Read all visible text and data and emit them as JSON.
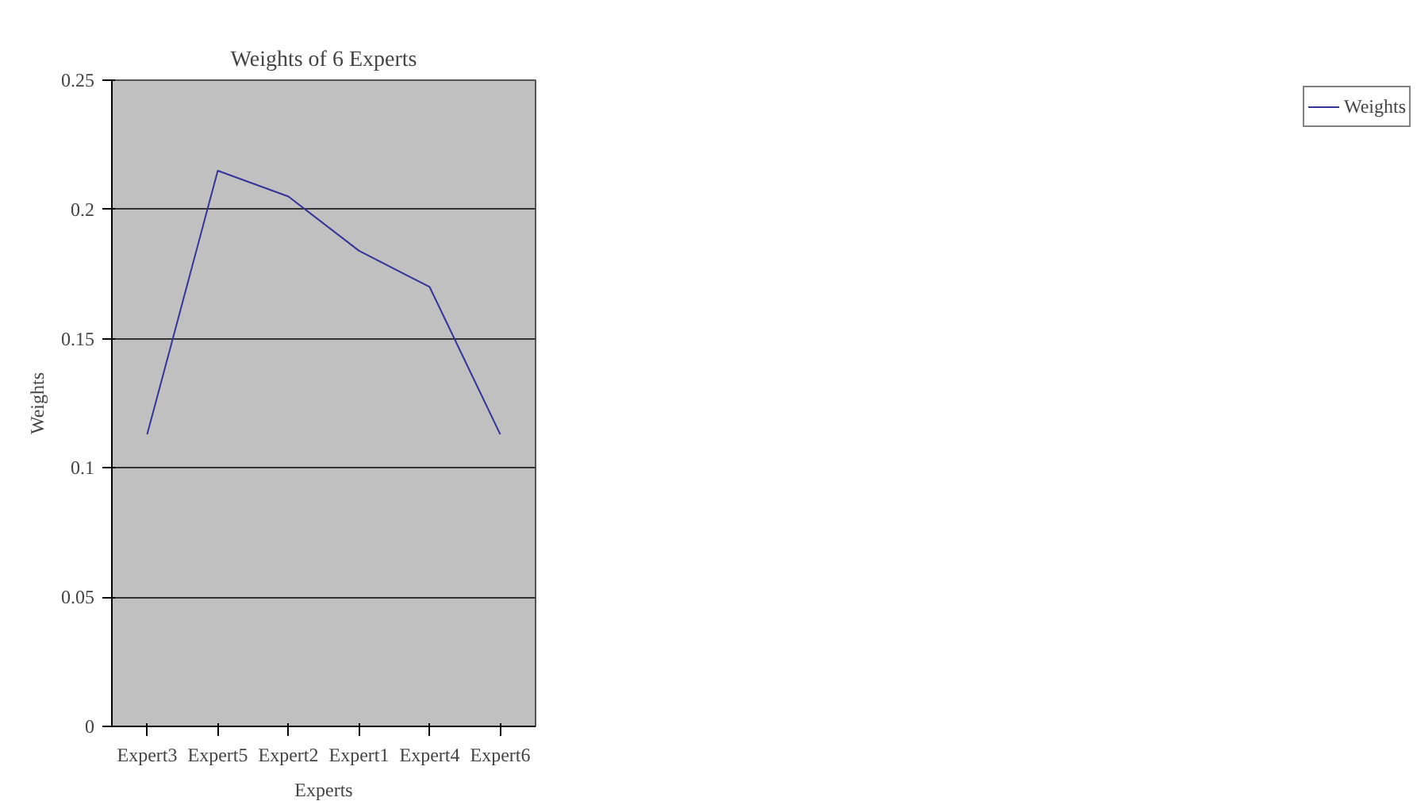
{
  "chart_data": {
    "type": "line",
    "title": "Weights of 6 Experts",
    "xlabel": "Experts",
    "ylabel": "Weights",
    "categories": [
      "Expert3",
      "Expert5",
      "Expert2",
      "Expert1",
      "Expert4",
      "Expert6"
    ],
    "series": [
      {
        "name": "Weights",
        "color": "#33339a",
        "values": [
          0.113,
          0.215,
          0.205,
          0.184,
          0.17,
          0.113
        ]
      }
    ],
    "ylim": [
      0,
      0.25
    ],
    "yticks": [
      0,
      0.05,
      0.1,
      0.15,
      0.2,
      0.25
    ],
    "grid": "y",
    "legend": "right",
    "marker": "none",
    "line_style": "solid"
  }
}
